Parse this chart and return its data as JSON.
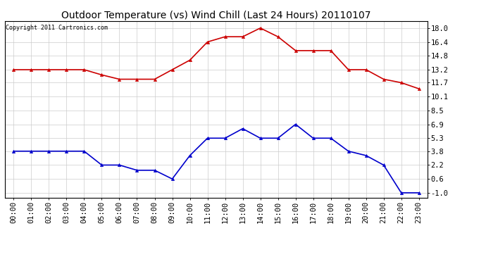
{
  "title": "Outdoor Temperature (vs) Wind Chill (Last 24 Hours) 20110107",
  "copyright": "Copyright 2011 Cartronics.com",
  "hours": [
    "00:00",
    "01:00",
    "02:00",
    "03:00",
    "04:00",
    "05:00",
    "06:00",
    "07:00",
    "08:00",
    "09:00",
    "10:00",
    "11:00",
    "12:00",
    "13:00",
    "14:00",
    "15:00",
    "16:00",
    "17:00",
    "18:00",
    "19:00",
    "20:00",
    "21:00",
    "22:00",
    "23:00"
  ],
  "temp": [
    13.2,
    13.2,
    13.2,
    13.2,
    13.2,
    12.6,
    12.1,
    12.1,
    12.1,
    13.2,
    14.3,
    16.4,
    17.0,
    17.0,
    18.0,
    17.0,
    15.4,
    15.4,
    15.4,
    13.2,
    13.2,
    12.1,
    11.7,
    11.0
  ],
  "wind_chill": [
    3.8,
    3.8,
    3.8,
    3.8,
    3.8,
    2.2,
    2.2,
    1.6,
    1.6,
    0.6,
    3.3,
    5.3,
    5.3,
    6.4,
    5.3,
    5.3,
    6.9,
    5.3,
    5.3,
    3.8,
    3.3,
    2.2,
    -1.0,
    -1.0
  ],
  "temp_color": "#cc0000",
  "wind_chill_color": "#0000cc",
  "background_color": "#ffffff",
  "plot_bg_color": "#ffffff",
  "grid_color": "#cccccc",
  "yticks": [
    18.0,
    16.4,
    14.8,
    13.2,
    11.7,
    10.1,
    8.5,
    6.9,
    5.3,
    3.8,
    2.2,
    0.6,
    -1.0
  ],
  "ymin": -1.6,
  "ymax": 18.8,
  "title_fontsize": 10,
  "copyright_fontsize": 6,
  "tick_fontsize": 7.5,
  "marker_size": 3,
  "line_width": 1.2
}
